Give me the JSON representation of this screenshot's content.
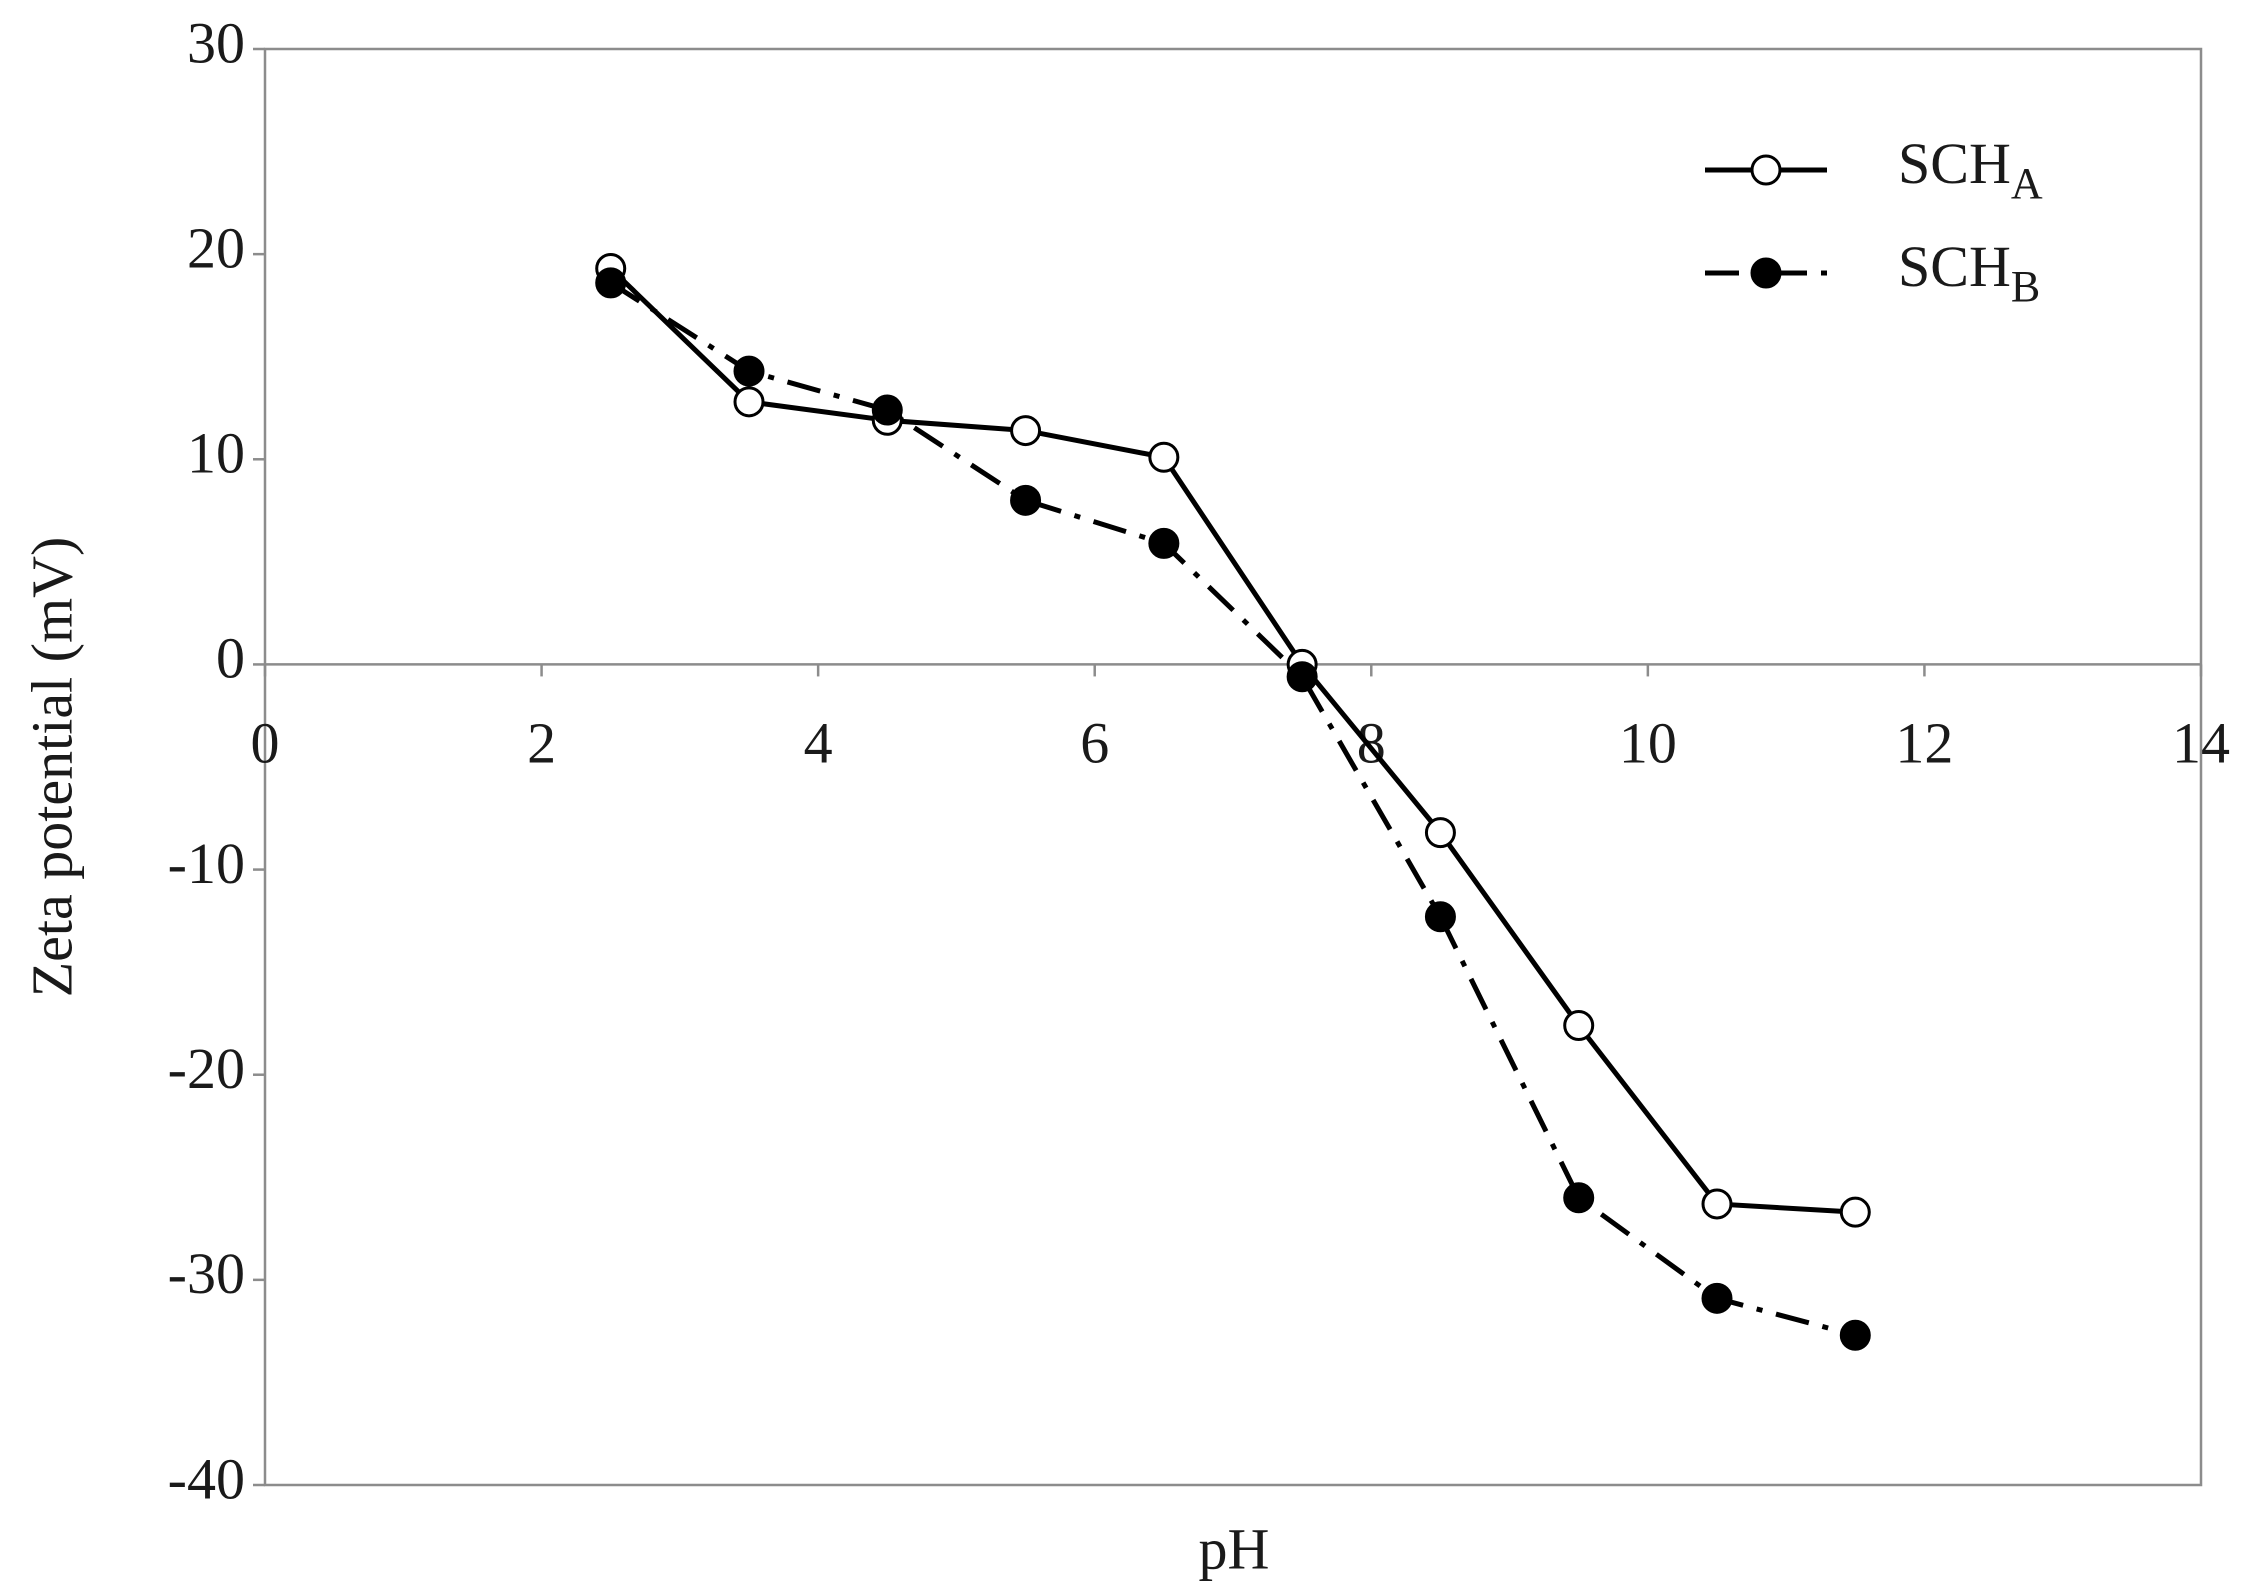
{
  "chart_data": {
    "type": "line",
    "x_label": "pH",
    "y_label": "Zeta potential (mV)",
    "x": [
      2.5,
      3.5,
      4.5,
      5.5,
      6.5,
      7.5,
      8.5,
      9.5,
      10.5,
      11.5
    ],
    "series": [
      {
        "name": "SCHA",
        "color": "#000000",
        "marker": "open",
        "linestyle": "solid",
        "values": [
          19.3,
          12.8,
          11.9,
          11.4,
          10.1,
          0,
          -8.2,
          -17.6,
          -26.3,
          -26.7
        ]
      },
      {
        "name": "SCHB",
        "color": "#000000",
        "marker": "filled",
        "linestyle": "dashdot",
        "values": [
          18.6,
          14.3,
          12.4,
          8.0,
          5.9,
          -0.6,
          -12.3,
          -26.0,
          -30.9,
          -32.7
        ]
      }
    ],
    "xlim": [
      0,
      14
    ],
    "xticks": [
      0,
      2,
      4,
      6,
      8,
      10,
      12,
      14
    ],
    "ylim": [
      -40,
      30
    ],
    "yticks": [
      -40,
      -30,
      -20,
      -10,
      0,
      10,
      20,
      30
    ],
    "legend": "upper-right"
  }
}
